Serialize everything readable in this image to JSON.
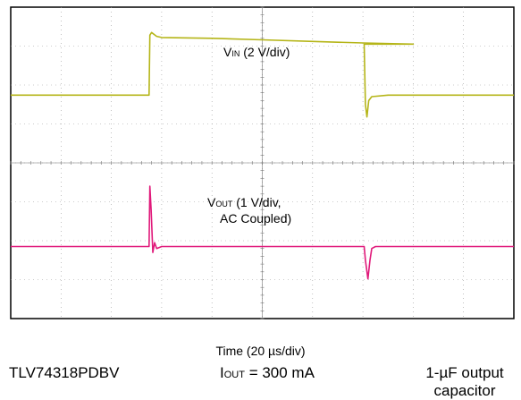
{
  "chart_data": {
    "type": "line",
    "title": "",
    "xlabel": "Time (20 µs/div)",
    "x_unit": "µs",
    "xlim": [
      0,
      200
    ],
    "grid": true,
    "divisions": {
      "x": 10,
      "y": 8
    },
    "series": [
      {
        "name_prefix": "V",
        "name_sub": "IN",
        "name_suffix": " (2 V/div)",
        "color": "#b5b518",
        "y_unit": "div",
        "points": [
          [
            0,
            1.74
          ],
          [
            55.0,
            1.74
          ],
          [
            55.3,
            3.28
          ],
          [
            56,
            3.35
          ],
          [
            58,
            3.25
          ],
          [
            60,
            3.22
          ],
          [
            80,
            3.2
          ],
          [
            100,
            3.16
          ],
          [
            120,
            3.12
          ],
          [
            140,
            3.08
          ],
          [
            160,
            3.05
          ],
          [
            140.5,
            3.05
          ],
          [
            141.0,
            1.5
          ],
          [
            141.6,
            1.18
          ],
          [
            142.3,
            1.6
          ],
          [
            143.5,
            1.7
          ],
          [
            150,
            1.74
          ],
          [
            200,
            1.74
          ]
        ],
        "events": [
          {
            "x": 55,
            "from": 1.74,
            "to": 3.35
          },
          {
            "x": 141,
            "from": 3.05,
            "to": 1.74
          }
        ]
      },
      {
        "name_prefix": "V",
        "name_sub": "OUT",
        "name_suffix": " (1 V/div,",
        "name_line2": "AC Coupled)",
        "color": "#e0197a",
        "y_unit": "div",
        "points": [
          [
            0,
            -2.15
          ],
          [
            55.0,
            -2.15
          ],
          [
            55.3,
            -0.6
          ],
          [
            55.8,
            -1.2
          ],
          [
            56.5,
            -2.3
          ],
          [
            57.2,
            -2.05
          ],
          [
            58,
            -2.2
          ],
          [
            60,
            -2.15
          ],
          [
            140.5,
            -2.15
          ],
          [
            141.0,
            -2.5
          ],
          [
            142.0,
            -2.98
          ],
          [
            142.8,
            -2.5
          ],
          [
            143.5,
            -2.2
          ],
          [
            145,
            -2.15
          ],
          [
            200,
            -2.15
          ]
        ],
        "events": [
          {
            "x": 55,
            "peak": -0.6
          },
          {
            "x": 142,
            "dip": -2.98
          }
        ]
      }
    ]
  },
  "footer": {
    "part": "TLV74318PDBV",
    "iout_prefix": "I",
    "iout_sub": "OUT",
    "iout_suffix": " = 300 mA",
    "capacitor": "1-µF output capacitor"
  }
}
